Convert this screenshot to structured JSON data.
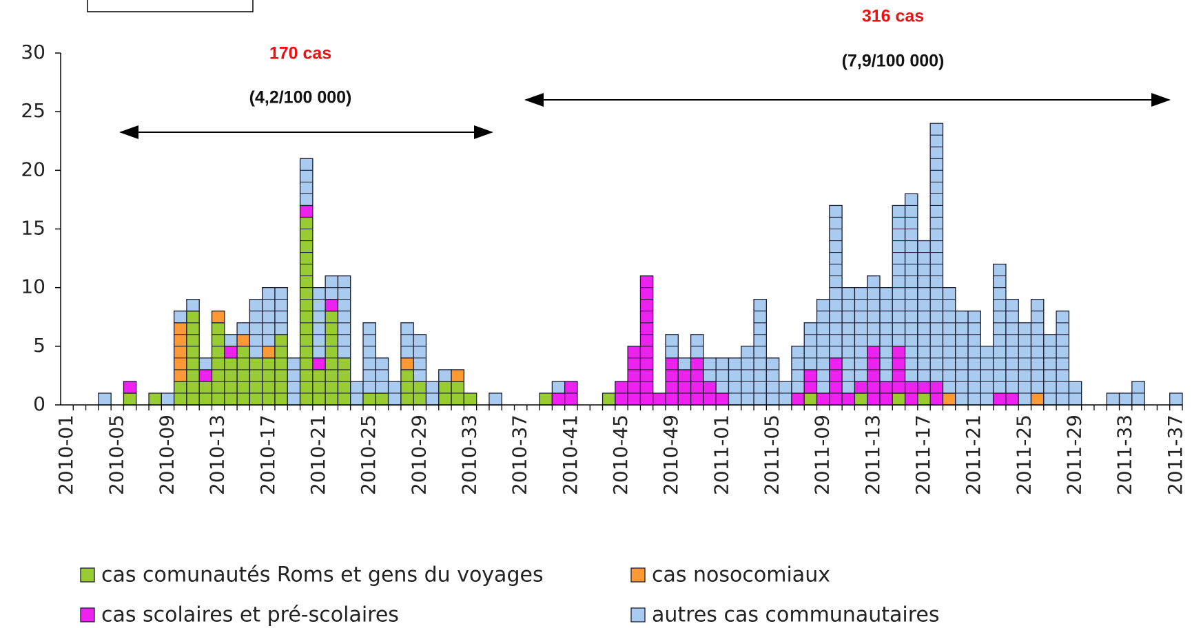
{
  "chart_data": {
    "type": "bar",
    "stacked": true,
    "categories": [
      "2010-01",
      null,
      null,
      null,
      "2010-05",
      null,
      null,
      null,
      "2010-09",
      null,
      null,
      null,
      "2010-13",
      null,
      null,
      null,
      "2010-17",
      null,
      null,
      null,
      "2010-21",
      null,
      null,
      null,
      "2010-25",
      null,
      null,
      null,
      "2010-29",
      null,
      null,
      null,
      "2010-33",
      null,
      null,
      null,
      "2010-37",
      null,
      null,
      null,
      "2010-41",
      null,
      null,
      null,
      "2010-45",
      null,
      null,
      null,
      "2010-49",
      null,
      null,
      null,
      "2011-01",
      null,
      null,
      null,
      "2011-05",
      null,
      null,
      null,
      "2011-09",
      null,
      null,
      null,
      "2011-13",
      null,
      null,
      null,
      "2011-17",
      null,
      null,
      null,
      "2011-21",
      null,
      null,
      null,
      "2011-25",
      null,
      null,
      null,
      "2011-29",
      null,
      null,
      null,
      "2011-33",
      null,
      null,
      null,
      "2011-37"
    ],
    "series": [
      {
        "name": "cas comunautés Roms et gens du voyages",
        "color": "#99cc33",
        "values": [
          0,
          0,
          0,
          0,
          0,
          1,
          0,
          1,
          0,
          2,
          8,
          2,
          7,
          4,
          5,
          4,
          4,
          6,
          0,
          16,
          3,
          8,
          4,
          0,
          1,
          1,
          0,
          3,
          2,
          0,
          2,
          2,
          1,
          0,
          0,
          0,
          0,
          0,
          1,
          0,
          0,
          0,
          0,
          1,
          0,
          0,
          0,
          0,
          0,
          0,
          0,
          0,
          0,
          0,
          0,
          0,
          0,
          0,
          0,
          1,
          0,
          0,
          0,
          1,
          0,
          0,
          1,
          0,
          1,
          0,
          0,
          0,
          0,
          0,
          0,
          0,
          0,
          0,
          0,
          0,
          0,
          0,
          0,
          0,
          0,
          0,
          0,
          0,
          0
        ]
      },
      {
        "name": "cas nosocomiaux",
        "color": "#ff9933",
        "values": [
          0,
          0,
          0,
          0,
          0,
          0,
          0,
          0,
          0,
          5,
          0,
          0,
          1,
          0,
          1,
          0,
          1,
          0,
          0,
          0,
          0,
          0,
          0,
          0,
          0,
          0,
          0,
          1,
          0,
          0,
          0,
          1,
          0,
          0,
          0,
          0,
          0,
          0,
          0,
          0,
          0,
          0,
          0,
          0,
          0,
          0,
          0,
          0,
          0,
          0,
          0,
          0,
          0,
          0,
          0,
          0,
          0,
          0,
          0,
          0,
          0,
          0,
          0,
          0,
          0,
          0,
          0,
          0,
          0,
          0,
          1,
          0,
          0,
          0,
          0,
          0,
          0,
          1,
          0,
          0,
          0,
          0,
          0,
          0,
          0,
          0,
          0,
          0,
          0
        ]
      },
      {
        "name": "cas scolaires et pré-scolaires",
        "color": "#ee22ee",
        "values": [
          0,
          0,
          0,
          0,
          0,
          1,
          0,
          0,
          0,
          0,
          0,
          1,
          0,
          1,
          0,
          0,
          0,
          0,
          0,
          1,
          1,
          1,
          0,
          0,
          0,
          0,
          0,
          0,
          0,
          0,
          0,
          0,
          0,
          0,
          0,
          0,
          0,
          0,
          0,
          1,
          2,
          0,
          0,
          0,
          2,
          5,
          11,
          1,
          4,
          3,
          4,
          2,
          1,
          0,
          0,
          0,
          0,
          0,
          1,
          2,
          1,
          4,
          1,
          1,
          5,
          2,
          4,
          2,
          1,
          2,
          0,
          0,
          0,
          0,
          1,
          1,
          0,
          0,
          0,
          0,
          0,
          0,
          0,
          0,
          0,
          0,
          0,
          0,
          0
        ]
      },
      {
        "name": "autres cas communautaires",
        "color": "#a9cbef",
        "values": [
          0,
          0,
          0,
          1,
          0,
          0,
          0,
          0,
          1,
          1,
          1,
          1,
          0,
          1,
          1,
          5,
          5,
          4,
          4,
          4,
          6,
          2,
          7,
          2,
          6,
          3,
          2,
          3,
          4,
          2,
          1,
          0,
          0,
          0,
          1,
          0,
          0,
          0,
          0,
          1,
          0,
          0,
          0,
          0,
          0,
          0,
          0,
          0,
          2,
          1,
          2,
          2,
          3,
          4,
          5,
          9,
          4,
          2,
          4,
          4,
          8,
          13,
          9,
          8,
          6,
          8,
          12,
          16,
          12,
          22,
          9,
          8,
          8,
          5,
          11,
          8,
          7,
          8,
          6,
          8,
          2,
          0,
          0,
          1,
          1,
          2,
          0,
          0,
          1
        ]
      }
    ],
    "ylim": [
      0,
      30
    ],
    "yticks": [
      0,
      5,
      10,
      15,
      20,
      25,
      30
    ],
    "annotations": [
      "170 cas",
      "(4,2/100 000)",
      "316 cas",
      "(7,9/100 000)"
    ]
  }
}
